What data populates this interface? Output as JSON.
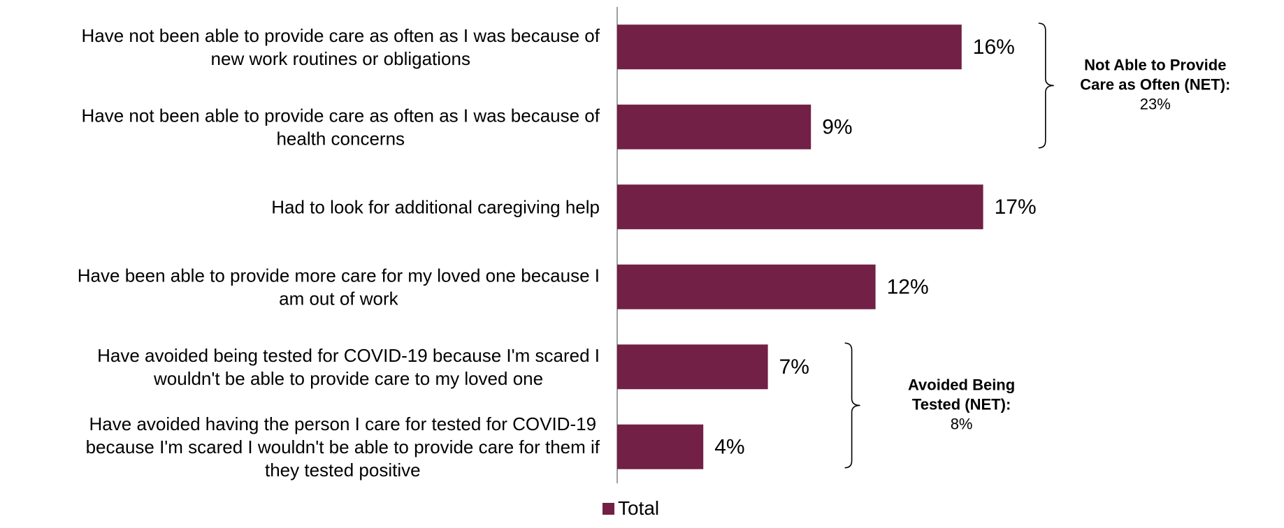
{
  "colors": {
    "bar": "#722045",
    "axis": "#7f7f7f",
    "text": "#000000"
  },
  "chart_data": {
    "type": "bar",
    "orientation": "horizontal",
    "title": "",
    "xlabel": "",
    "ylabel": "",
    "xlim": [
      0,
      17
    ],
    "grid": false,
    "legend_position": "bottom",
    "value_suffix": "%",
    "categories": [
      [
        "Have not been able to provide care as often as I was because of",
        "new work routines or obligations"
      ],
      [
        "Have not been able to provide care as often as I was because of",
        "health concerns"
      ],
      [
        "Had to look for additional caregiving help"
      ],
      [
        "Have been able to provide more care for my loved one because I",
        "am out of work"
      ],
      [
        "Have avoided being tested for COVID-19 because I'm scared I",
        "wouldn't be able to provide care to my loved one"
      ],
      [
        "Have avoided having the person I care for tested for COVID-19",
        "because I'm scared I wouldn't be able to provide care for them if",
        "they tested positive"
      ]
    ],
    "series": [
      {
        "name": "Total",
        "values": [
          16,
          9,
          17,
          12,
          7,
          4
        ]
      }
    ],
    "annotations": [
      {
        "category_range": [
          0,
          1
        ],
        "title_lines": [
          "Not Able to Provide",
          "Care as Often (NET):"
        ],
        "value": "23%"
      },
      {
        "category_range": [
          4,
          5
        ],
        "title_lines": [
          "Avoided Being",
          "Tested (NET):"
        ],
        "value": "8%"
      }
    ]
  }
}
